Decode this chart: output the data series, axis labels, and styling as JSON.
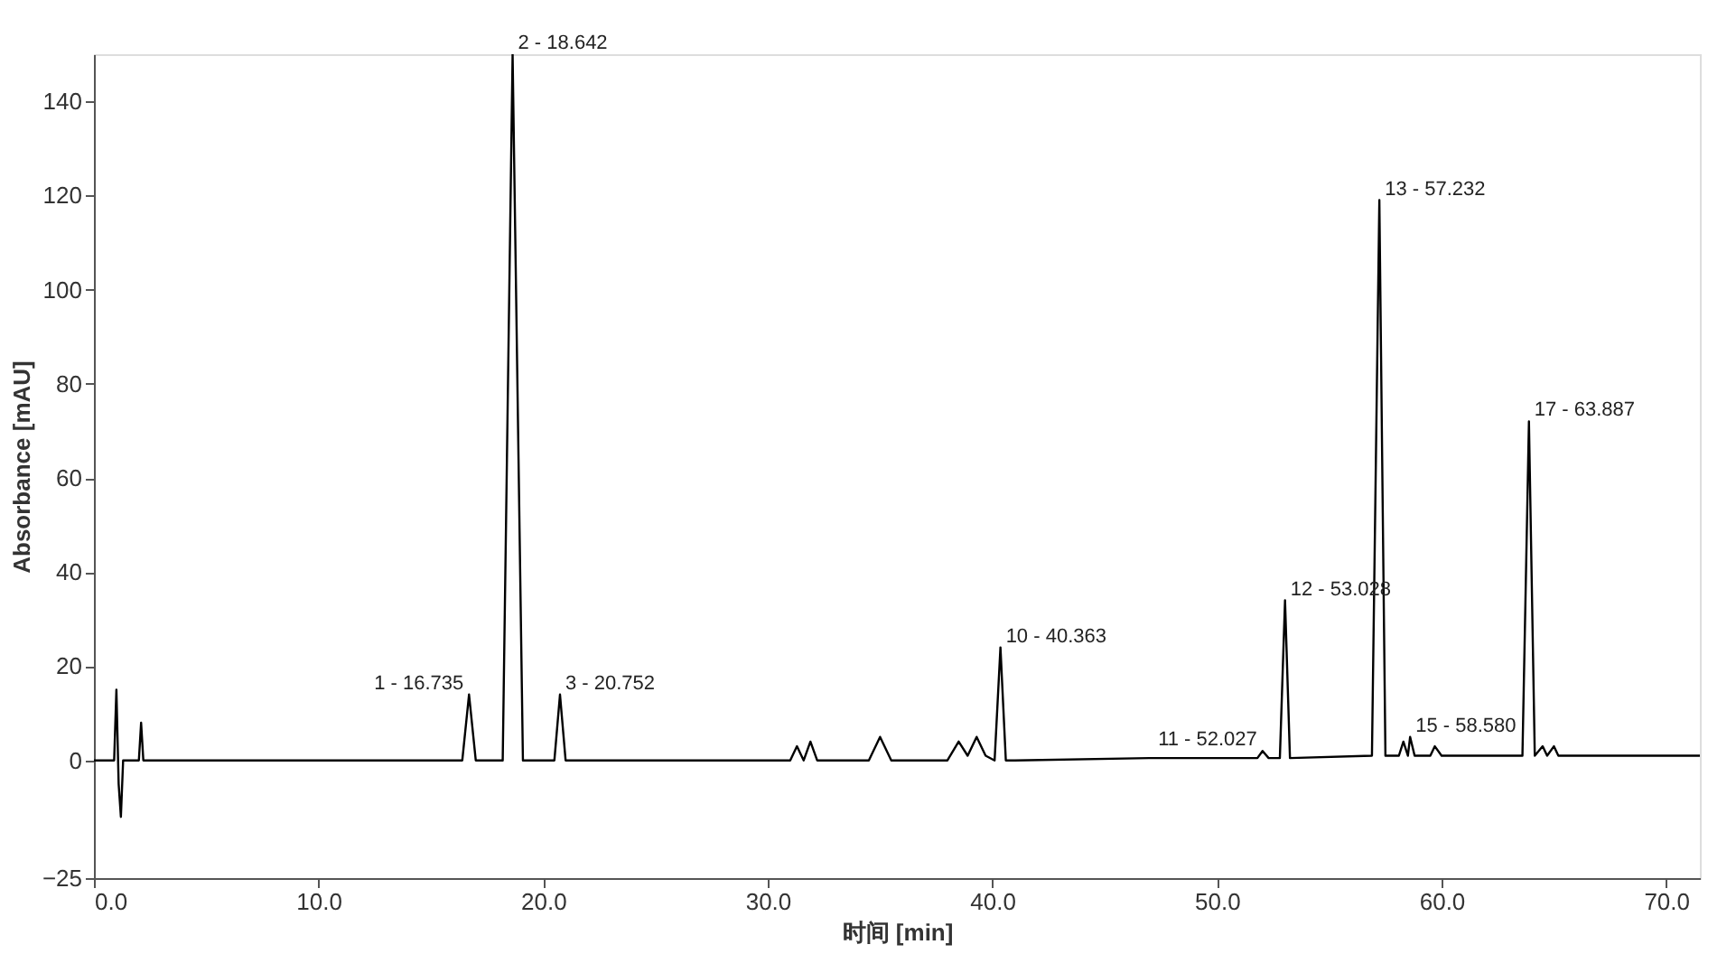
{
  "chart_data": {
    "type": "line",
    "xlabel": "时间 [min]",
    "ylabel": "Absorbance [mAU]",
    "x": [
      0,
      0.9,
      1.0,
      1.1,
      1.2,
      1.3,
      1.4,
      2.0,
      2.1,
      2.2,
      16.0,
      16.4,
      16.7,
      17.0,
      17.4,
      18.2,
      18.64,
      19.1,
      20.2,
      20.5,
      20.75,
      21.0,
      21.5,
      30.0,
      31.0,
      31.3,
      31.6,
      31.9,
      32.2,
      32.6,
      34.5,
      35.0,
      35.5,
      38.0,
      38.5,
      38.9,
      39.3,
      39.7,
      40.1,
      40.36,
      40.6,
      41.0,
      47.0,
      51.8,
      52.03,
      52.3,
      52.8,
      53.03,
      53.25,
      56.9,
      57.23,
      57.5,
      58.1,
      58.3,
      58.5,
      58.6,
      58.8,
      59.5,
      59.7,
      60.0,
      63.6,
      63.89,
      64.15,
      64.5,
      64.7,
      65.0,
      65.2,
      71.5
    ],
    "series": [
      {
        "color": "#000000",
        "values": [
          0,
          0,
          15,
          -5,
          -12,
          0,
          0,
          0,
          8,
          0,
          0,
          0,
          14,
          0,
          0,
          0,
          150,
          0,
          0,
          0,
          14,
          0,
          0,
          0,
          0,
          3,
          0,
          4,
          0,
          0,
          0,
          5,
          0,
          0,
          4,
          1,
          5,
          1,
          0,
          24,
          0,
          0,
          0.5,
          0.5,
          2,
          0.5,
          0.5,
          34,
          0.5,
          1,
          119,
          1,
          1,
          4,
          1,
          5,
          1,
          1,
          3,
          1,
          1,
          72,
          1,
          3,
          1,
          3,
          1,
          1
        ]
      }
    ],
    "xlim": [
      0,
      71.5
    ],
    "ylim": [
      -25,
      150
    ],
    "xticks": [
      {
        "value": 0,
        "label": "0.0"
      },
      {
        "value": 10,
        "label": "10.0"
      },
      {
        "value": 20,
        "label": "20.0"
      },
      {
        "value": 30,
        "label": "30.0"
      },
      {
        "value": 40,
        "label": "40.0"
      },
      {
        "value": 50,
        "label": "50.0"
      },
      {
        "value": 60,
        "label": "60.0"
      },
      {
        "value": 70,
        "label": "70.0"
      }
    ],
    "yticks": [
      -25,
      0,
      20,
      40,
      60,
      80,
      100,
      120,
      140
    ],
    "annotations": [
      {
        "text": "1 - 16.735",
        "x": 16.7,
        "y": 14
      },
      {
        "text": "2 - 18.642",
        "x": 18.64,
        "y": 150
      },
      {
        "text": "3 - 20.752",
        "x": 20.75,
        "y": 14
      },
      {
        "text": "10 - 40.363",
        "x": 40.36,
        "y": 24
      },
      {
        "text": "11 - 52.027",
        "x": 52.03,
        "y": 2
      },
      {
        "text": "12 - 53.028",
        "x": 53.03,
        "y": 34
      },
      {
        "text": "13 - 57.232",
        "x": 57.23,
        "y": 119
      },
      {
        "text": "15 - 58.580",
        "x": 58.6,
        "y": 5
      },
      {
        "text": "17 - 63.887",
        "x": 63.89,
        "y": 72
      }
    ]
  }
}
